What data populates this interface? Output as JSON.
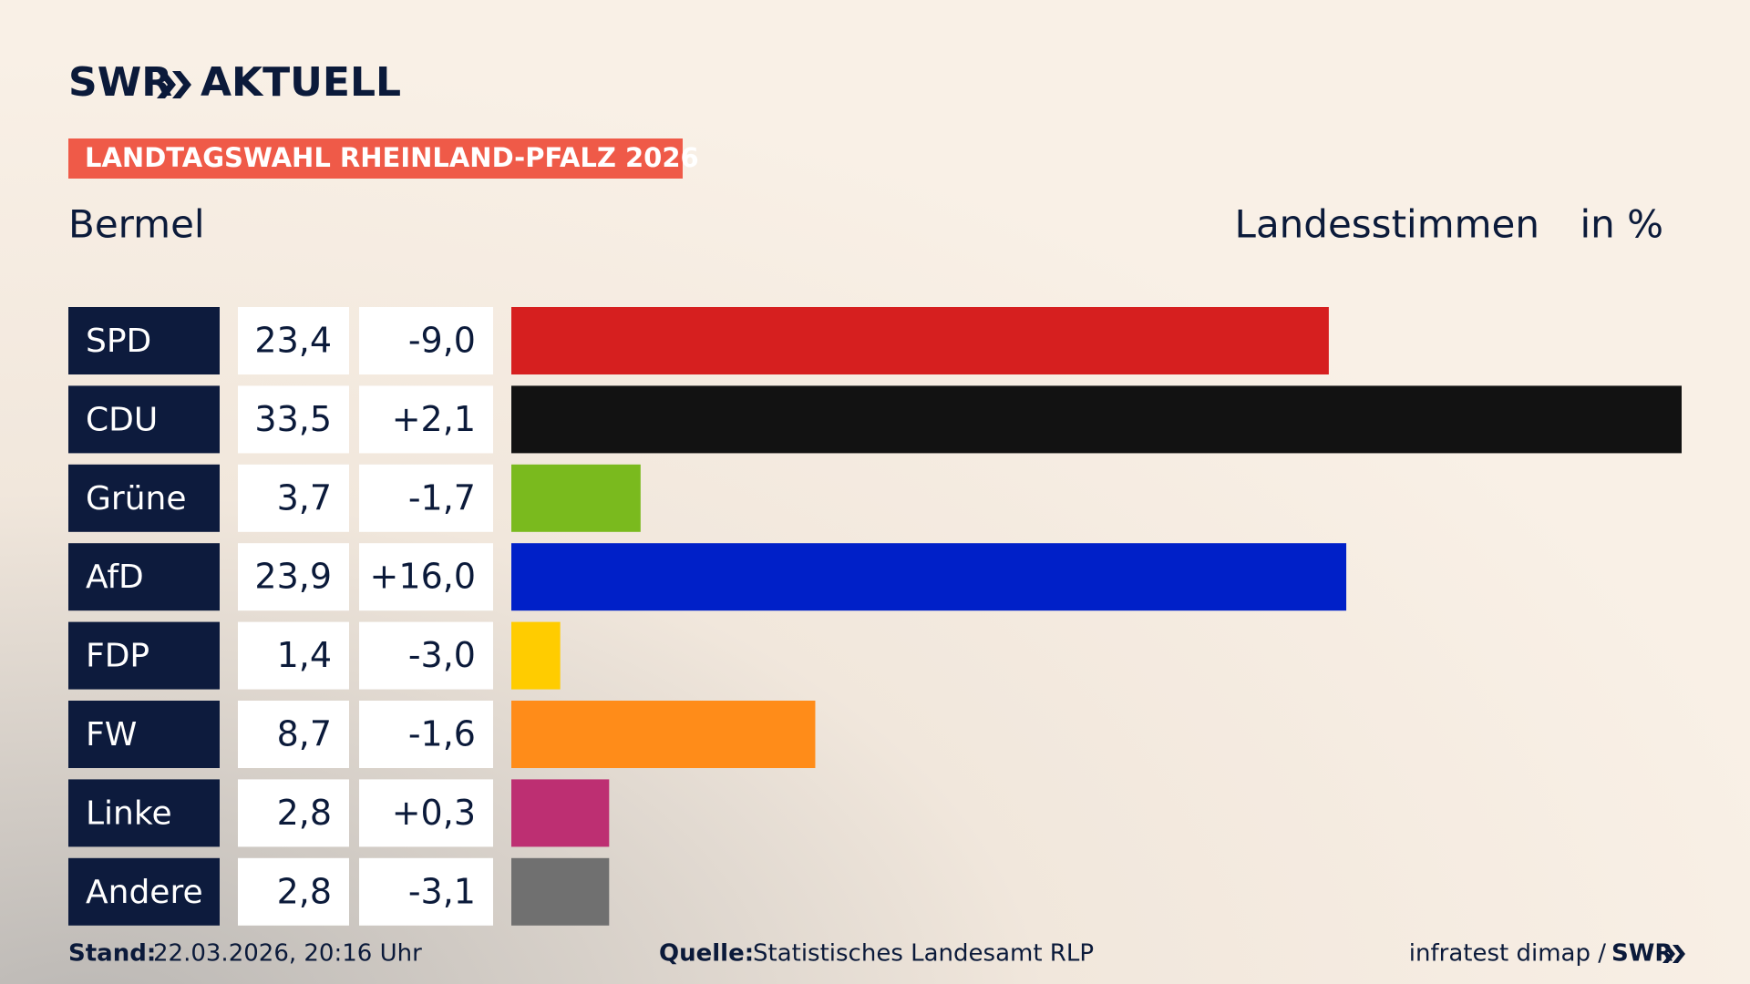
{
  "header": {
    "logo": "SWR",
    "logo_suffix": "AKTUELL",
    "banner": "LANDTAGSWAHL RHEINLAND-PFALZ 2026"
  },
  "chart_data": {
    "type": "bar",
    "title": "Bermel",
    "subtitle": "Landesstimmen",
    "unit": "in %",
    "categories": [
      "SPD",
      "CDU",
      "Grüne",
      "AfD",
      "FDP",
      "FW",
      "Linke",
      "Andere"
    ],
    "values": [
      23.4,
      33.5,
      3.7,
      23.9,
      1.4,
      8.7,
      2.8,
      2.8
    ],
    "value_labels": [
      "23,4",
      "33,5",
      "3,7",
      "23,9",
      "1,4",
      "8,7",
      "2,8",
      "2,8"
    ],
    "changes": [
      -9.0,
      2.1,
      -1.7,
      16.0,
      -3.0,
      -1.6,
      0.3,
      -3.1
    ],
    "change_labels": [
      "-9,0",
      "+2,1",
      "-1,7",
      "+16,0",
      "-3,0",
      "-1,6",
      "+0,3",
      "-3,1"
    ],
    "colors": [
      "#d61f1f",
      "#121212",
      "#7aba1e",
      "#0020c8",
      "#ffcc00",
      "#ff8c19",
      "#bd2f72",
      "#707070"
    ]
  },
  "footer": {
    "stand_label": "Stand:",
    "stand": "22.03.2026, 20:16 Uhr",
    "source_label": "Quelle:",
    "source": "Statistisches Landesamt RLP",
    "credit": "infratest dimap /",
    "credit_logo": "SWR"
  }
}
